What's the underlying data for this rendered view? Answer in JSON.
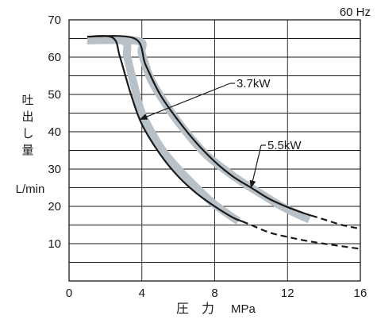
{
  "chart_data": {
    "type": "line",
    "frequency_note": "60 Hz",
    "xlabel_jp": "圧　力",
    "xlabel_unit": "MPa",
    "ylabel_jp": [
      "吐",
      "出",
      "し",
      "量"
    ],
    "ylabel_unit": "L/min",
    "xlim": [
      0,
      16
    ],
    "ylim": [
      0,
      70
    ],
    "x_ticks": [
      0,
      4,
      8,
      12,
      16
    ],
    "y_ticks": [
      10,
      20,
      30,
      40,
      50,
      60,
      70
    ],
    "y_gridlines_step": 5,
    "grid": true,
    "series": [
      {
        "name": "3.7kW",
        "color": "#1a1a1a",
        "points": [
          [
            1.0,
            65.5
          ],
          [
            2.4,
            65.2
          ],
          [
            2.8,
            60
          ],
          [
            3.4,
            50
          ],
          [
            4.0,
            42
          ],
          [
            5.0,
            34
          ],
          [
            6.0,
            28
          ],
          [
            7.0,
            23.5
          ],
          [
            8.0,
            20
          ],
          [
            9.0,
            17
          ],
          [
            10.0,
            15
          ],
          [
            11.0,
            13
          ],
          [
            12.0,
            11.8
          ],
          [
            13.0,
            10.8
          ],
          [
            14.0,
            10.0
          ],
          [
            15.0,
            9.3
          ],
          [
            16.0,
            8.6
          ]
        ],
        "dashed_from_x": 9.5
      },
      {
        "name": "5.5kW",
        "color": "#1a1a1a",
        "points": [
          [
            1.0,
            65.5
          ],
          [
            3.6,
            65.0
          ],
          [
            4.2,
            58
          ],
          [
            5.0,
            50
          ],
          [
            6.0,
            43
          ],
          [
            7.0,
            37
          ],
          [
            8.0,
            32
          ],
          [
            9.0,
            28
          ],
          [
            10.0,
            25
          ],
          [
            11.0,
            22
          ],
          [
            12.0,
            19.8
          ],
          [
            13.0,
            18
          ],
          [
            14.0,
            16.5
          ],
          [
            15.0,
            15
          ],
          [
            16.0,
            14
          ]
        ],
        "dashed_from_x": 13.3
      },
      {
        "name": "",
        "style": "band",
        "color": "#b8c0c8",
        "points": [
          [
            1.0,
            64.5
          ],
          [
            3.0,
            64.3
          ],
          [
            3.2,
            60
          ],
          [
            3.6,
            52
          ],
          [
            4.0,
            45
          ],
          [
            5.0,
            36
          ],
          [
            6.0,
            30
          ],
          [
            7.0,
            25
          ],
          [
            8.0,
            20.5
          ],
          [
            9.3,
            16
          ]
        ]
      },
      {
        "name": "",
        "style": "band",
        "color": "#b8c0c8",
        "points": [
          [
            1.0,
            64.5
          ],
          [
            3.8,
            64.3
          ],
          [
            4.0,
            61
          ],
          [
            4.5,
            54
          ],
          [
            5.5,
            46
          ],
          [
            6.5,
            39.5
          ],
          [
            7.5,
            34
          ],
          [
            8.5,
            30
          ],
          [
            9.5,
            26.5
          ],
          [
            10.5,
            23.5
          ],
          [
            11.5,
            20.5
          ],
          [
            12.5,
            18
          ],
          [
            13.2,
            16.5
          ]
        ]
      }
    ],
    "annotations": [
      {
        "text": "3.7kW",
        "series": "3.7kW",
        "point_x": 3.9
      },
      {
        "text": "5.5kW",
        "series": "5.5kW",
        "point_x": 10.0
      }
    ]
  }
}
